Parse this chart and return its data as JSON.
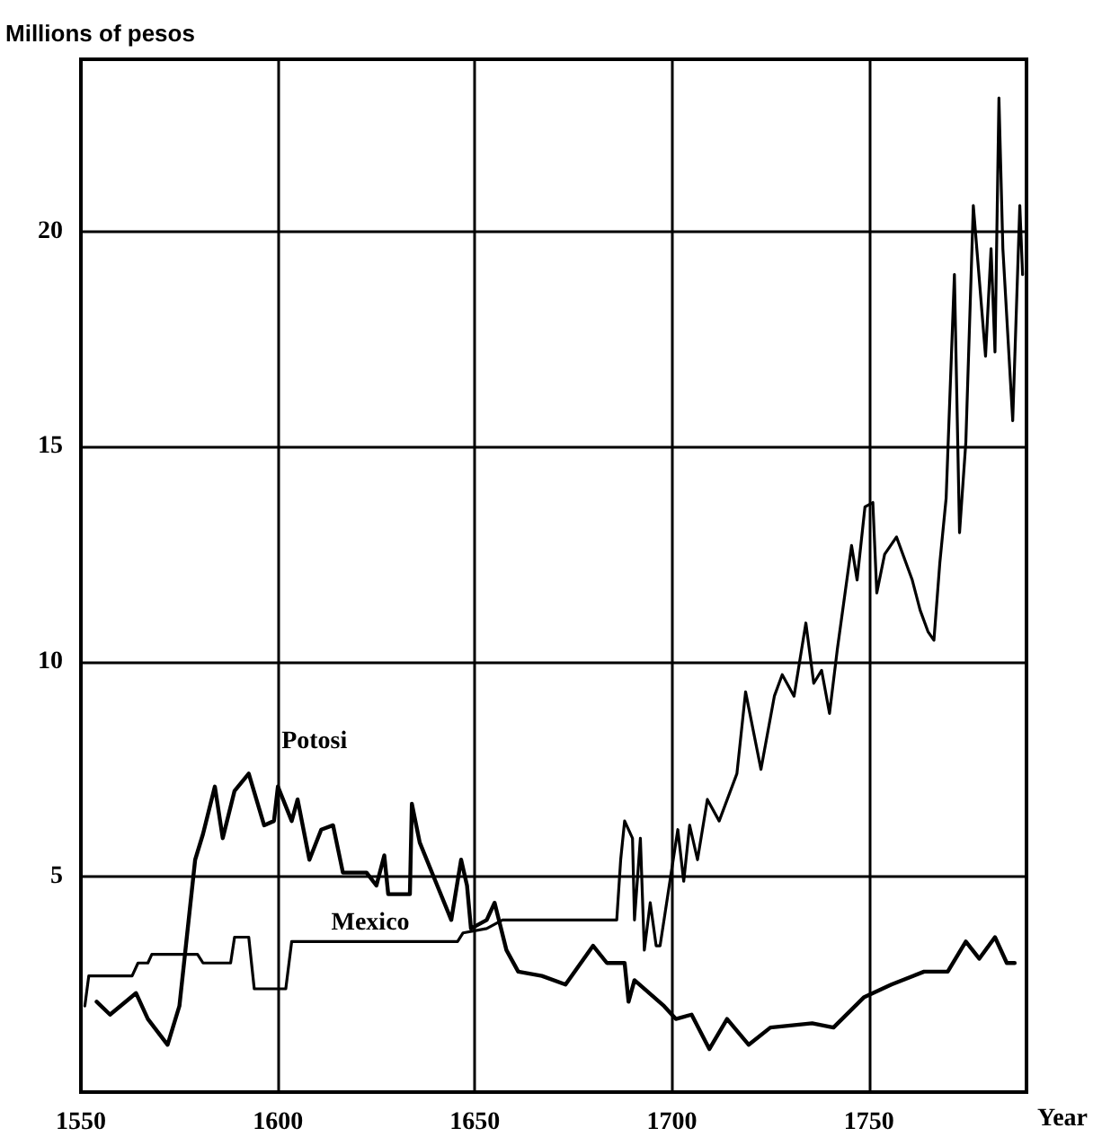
{
  "chart_data": {
    "type": "line",
    "ylabel": "Millions of pesos",
    "xlabel": "Year",
    "xlim": [
      1550,
      1790
    ],
    "xticks": [
      1550,
      1600,
      1650,
      1700,
      1750
    ],
    "ylim": [
      0,
      24
    ],
    "yticks": [
      {
        "value": 0,
        "label": null
      },
      5,
      10,
      15,
      20
    ],
    "grid": true,
    "legend": false,
    "marker": "none",
    "line_style": "solid",
    "series": [
      {
        "name": "Potosi",
        "color": "#000000",
        "x": [
          1554,
          1557.4,
          1564,
          1567,
          1572,
          1575,
          1579,
          1581,
          1584,
          1586,
          1589,
          1592.6,
          1596.5,
          1599,
          1600,
          1603.5,
          1605,
          1608,
          1611,
          1614,
          1616.5,
          1622.5,
          1625,
          1627,
          1628,
          1633.5,
          1634,
          1636,
          1640,
          1644,
          1646.5,
          1648,
          1649,
          1653,
          1655,
          1658,
          1661,
          1667,
          1673,
          1680,
          1683.5,
          1688,
          1689,
          1690.5,
          1698,
          1701,
          1705,
          1709.5,
          1714,
          1719.5,
          1725,
          1735.6,
          1741,
          1748.7,
          1755.7,
          1764,
          1770,
          1774.6,
          1778,
          1782,
          1785,
          1787
        ],
        "values": [
          2.1,
          1.8,
          2.3,
          1.7,
          1.1,
          2.0,
          5.4,
          6.0,
          7.1,
          5.9,
          7.0,
          7.4,
          6.2,
          6.3,
          7.1,
          6.3,
          6.8,
          5.4,
          6.1,
          6.2,
          5.1,
          5.1,
          4.8,
          5.5,
          4.6,
          4.6,
          6.7,
          5.8,
          4.9,
          4.0,
          5.4,
          4.8,
          3.8,
          4.0,
          4.4,
          3.3,
          2.8,
          2.7,
          2.5,
          3.4,
          3.0,
          3.0,
          2.1,
          2.6,
          2.0,
          1.7,
          1.8,
          1.0,
          1.7,
          1.1,
          1.5,
          1.6,
          1.5,
          2.2,
          2.5,
          2.8,
          2.8,
          3.5,
          3.1,
          3.6,
          3.0,
          3.0
        ]
      },
      {
        "name": "Mexico",
        "color": "#000000",
        "x": [
          1551,
          1552,
          1563,
          1564.5,
          1567,
          1568,
          1579.6,
          1581,
          1588,
          1589,
          1592.6,
          1594,
          1602,
          1603.5,
          1645.6,
          1647,
          1653,
          1657,
          1686,
          1687,
          1688,
          1690,
          1690.5,
          1692,
          1693,
          1694.5,
          1696,
          1697,
          1699,
          1701.5,
          1703,
          1704.5,
          1706.5,
          1709,
          1712,
          1716.5,
          1718.7,
          1722.6,
          1726,
          1728,
          1731,
          1734,
          1736,
          1738,
          1740,
          1742,
          1745.6,
          1747,
          1749,
          1751,
          1752,
          1754,
          1757,
          1761,
          1763,
          1765,
          1766.5,
          1768,
          1769.6,
          1771.7,
          1773,
          1774.6,
          1776.5,
          1779.6,
          1781,
          1782,
          1783,
          1784,
          1786.5,
          1788.3,
          1789
        ],
        "values": [
          2.0,
          2.7,
          2.7,
          3.0,
          3.0,
          3.2,
          3.2,
          3.0,
          3.0,
          3.6,
          3.6,
          2.4,
          2.4,
          3.5,
          3.5,
          3.7,
          3.8,
          4.0,
          4.0,
          5.4,
          6.3,
          5.9,
          4.0,
          5.9,
          3.3,
          4.4,
          3.4,
          3.4,
          4.6,
          6.1,
          4.9,
          6.2,
          5.4,
          6.8,
          6.3,
          7.4,
          9.3,
          7.5,
          9.2,
          9.7,
          9.2,
          10.9,
          9.5,
          9.8,
          8.8,
          10.3,
          12.7,
          11.9,
          13.6,
          13.7,
          11.6,
          12.5,
          12.9,
          11.9,
          11.2,
          10.7,
          10.5,
          12.3,
          13.8,
          19.0,
          13.0,
          15.1,
          20.6,
          17.1,
          19.6,
          17.2,
          23.1,
          19.6,
          15.6,
          20.6,
          19.0
        ]
      }
    ]
  }
}
